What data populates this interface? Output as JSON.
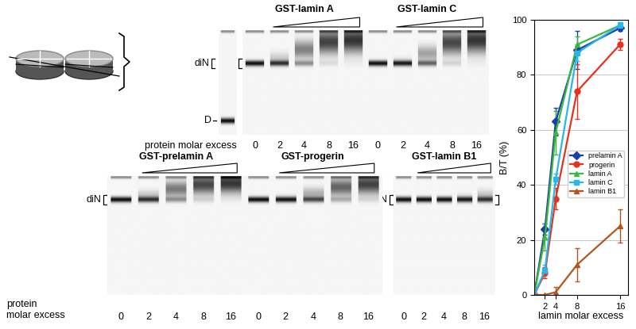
{
  "chart_data": {
    "type": "line",
    "xlabel": "lamin molar excess",
    "ylabel": "B/T (%)",
    "x": [
      0,
      2,
      4,
      8,
      16
    ],
    "xlim": [
      0,
      17.5
    ],
    "xticks": [
      2,
      4,
      8,
      16
    ],
    "ylim": [
      0,
      100
    ],
    "yticks": [
      0,
      20,
      40,
      60,
      80,
      100
    ],
    "grid": true,
    "legend": "center right",
    "series": [
      {
        "name": "prelamin A",
        "color": "#1a3fa8",
        "marker": "diamond",
        "values": [
          0,
          24,
          63,
          89,
          97
        ],
        "errors": [
          0,
          2,
          5,
          7,
          1
        ]
      },
      {
        "name": "progerin",
        "color": "#e8301c",
        "marker": "circle",
        "values": [
          0,
          8,
          35,
          74,
          91
        ],
        "errors": [
          0,
          2,
          4,
          10,
          2
        ]
      },
      {
        "name": "lamin A",
        "color": "#3cb83c",
        "marker": "triangle",
        "values": [
          0,
          21,
          59,
          91,
          98
        ],
        "errors": [
          0,
          5,
          8,
          3,
          1
        ]
      },
      {
        "name": "lamin C",
        "color": "#29b6e8",
        "marker": "square",
        "values": [
          0,
          9,
          42,
          88,
          98
        ],
        "errors": [
          0,
          2,
          2,
          3,
          1
        ]
      },
      {
        "name": "lamin B1",
        "color": "#b5541c",
        "marker": "triangle",
        "values": [
          0,
          0,
          1,
          11,
          25
        ],
        "errors": [
          0,
          0,
          2,
          6,
          6
        ]
      }
    ]
  },
  "gels": [
    {
      "panels": [
        {
          "name": "GST-lamin A",
          "excess": [
            0,
            2,
            4,
            8,
            16
          ]
        },
        {
          "name": "GST-lamin C",
          "excess": [
            0,
            2,
            4,
            8,
            16
          ]
        }
      ],
      "complex": "diN",
      "free_dna": "D",
      "axis_label": "protein molar excess"
    },
    {
      "panels": [
        {
          "name": "GST-prelamin A",
          "excess": [
            0,
            2,
            4,
            8,
            16
          ]
        },
        {
          "name": "GST-progerin",
          "excess": [
            0,
            2,
            4,
            8,
            16
          ]
        }
      ],
      "complex": "diN",
      "axis_label": "protein\nmolar excess"
    },
    {
      "panels": [
        {
          "name": "GST-lamin B1",
          "excess": [
            0,
            2,
            4,
            8,
            16
          ]
        }
      ],
      "complex": "diN"
    }
  ]
}
